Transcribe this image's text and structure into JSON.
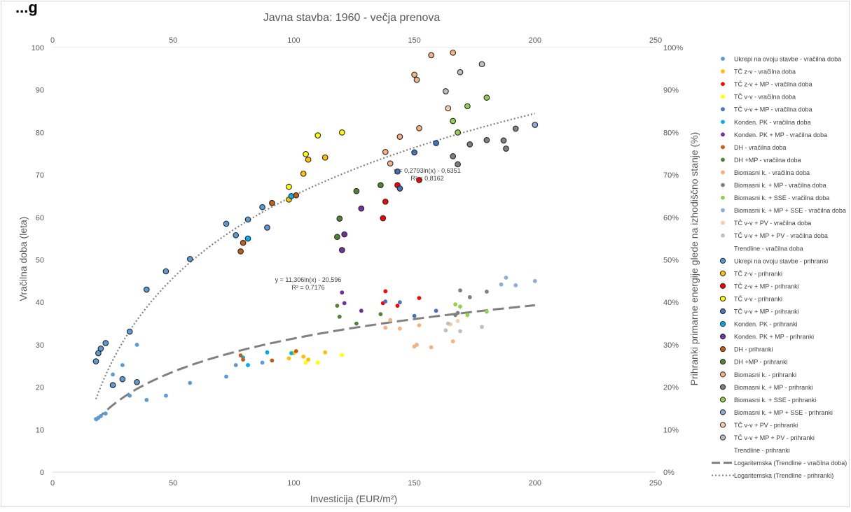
{
  "page": {
    "header_text": "...g"
  },
  "chart_data": {
    "type": "scatter",
    "title": "Javna stavba: 1960 - večja prenova",
    "xlabel": "Investicija (EUR/m²)",
    "ylabel": "Vračilna doba (leta)",
    "ylabel_right": "Prihranki primarne energije glede na izhodiščno stanje (%)",
    "xlim": [
      0,
      250
    ],
    "ylim": [
      0,
      100
    ],
    "ylim_right": [
      0,
      1
    ],
    "x_ticks": [
      "0",
      "50",
      "100",
      "150",
      "200",
      "250"
    ],
    "y_ticks": [
      "0",
      "10",
      "20",
      "30",
      "40",
      "50",
      "60",
      "70",
      "80",
      "90",
      "100"
    ],
    "y_ticks_right": [
      "0%",
      "10%",
      "20%",
      "30%",
      "40%",
      "50%",
      "60%",
      "70%",
      "80%",
      "90%",
      "100%"
    ],
    "grid": false,
    "legend_position": "right",
    "series": [
      {
        "name": "Ukrepi na ovoju stavbe - vračilna doba",
        "color": "#5b9bd5",
        "outlined": false,
        "x": [
          18,
          19,
          20,
          22,
          25,
          29,
          32,
          35,
          39,
          47,
          57,
          72,
          76,
          81,
          87,
          89
        ],
        "y": [
          12.5,
          12.8,
          13.2,
          13.8,
          23,
          25.2,
          18,
          30,
          17,
          18,
          21,
          22.5,
          25.2,
          25.2,
          25.8,
          28.2
        ]
      },
      {
        "name": "TČ z-v - vračilna doba",
        "color": "#ffc000",
        "outlined": false,
        "x": [
          98,
          100,
          104,
          106,
          113
        ],
        "y": [
          26.8,
          28,
          27.2,
          26.5,
          28.2
        ]
      },
      {
        "name": "TČ z-v + MP - vračilna doba",
        "color": "#ff0000",
        "outlined": false,
        "x": [
          137,
          138,
          143,
          152
        ],
        "y": [
          39.8,
          42.6,
          39.2,
          41
        ]
      },
      {
        "name": "TČ v-v - vračilna doba",
        "color": "#ffff00",
        "outlined": false,
        "x": [
          99,
          105,
          110,
          120
        ],
        "y": [
          28.2,
          25.8,
          25.8,
          27.6
        ]
      },
      {
        "name": "TČ v-v + MP - vračilna doba",
        "color": "#4472c4",
        "outlined": false,
        "x": [
          138,
          144,
          150,
          159
        ],
        "y": [
          40.2,
          40,
          36.8,
          38
        ]
      },
      {
        "name": "Konden. PK - vračilna doba",
        "color": "#00b0f0",
        "outlined": false,
        "x": [
          79,
          81,
          89,
          99
        ],
        "y": [
          27,
          25.2,
          28.2,
          28
        ]
      },
      {
        "name": "Konden. PK + MP - vračilna doba",
        "color": "#7030a0",
        "outlined": false,
        "x": [
          120,
          121,
          128
        ],
        "y": [
          42.3,
          39.8,
          38
        ]
      },
      {
        "name": "DH - vračilna doba",
        "color": "#c55a11",
        "outlined": false,
        "x": [
          78,
          79,
          91,
          101
        ],
        "y": [
          27.5,
          26.5,
          26.3,
          28.5
        ]
      },
      {
        "name": "DH +MP - vračilna doba",
        "color": "#548235",
        "outlined": false,
        "x": [
          118,
          119,
          126,
          136
        ],
        "y": [
          39.2,
          36.6,
          35,
          37.2
        ]
      },
      {
        "name": "Biomasni k. - vračilna doba",
        "color": "#f4b183",
        "outlined": false,
        "x": [
          138,
          140,
          144,
          150,
          151,
          152,
          157,
          166
        ],
        "y": [
          34,
          35.8,
          33.8,
          29.6,
          30,
          34.6,
          29.4,
          30.8
        ]
      },
      {
        "name": "Biomasni k. + MP - vračilna doba",
        "color": "#7f7f7f",
        "outlined": false,
        "x": [
          167,
          168,
          169,
          173,
          180
        ],
        "y": [
          37,
          37.5,
          42.8,
          41.2,
          42.5
        ]
      },
      {
        "name": "Biomasni k. + SSE - vračilna doba",
        "color": "#92d050",
        "outlined": false,
        "x": [
          167,
          169,
          172,
          180
        ],
        "y": [
          39.5,
          39,
          37,
          37.8
        ]
      },
      {
        "name": "Biomasni k. + MP + SSE - vračilna doba",
        "color": "#8faadc",
        "outlined": false,
        "x": [
          186,
          188,
          192,
          200
        ],
        "y": [
          44.2,
          45.8,
          44,
          45
        ]
      },
      {
        "name": "TČ v-v + PV - vračilna doba",
        "color": "#f8cbad",
        "outlined": false,
        "x": [
          165,
          168
        ],
        "y": [
          34.8,
          35.6
        ]
      },
      {
        "name": "TČ v-v + MP + PV - vračilna doba",
        "color": "#bfbfbf",
        "outlined": false,
        "x": [
          163,
          164,
          169,
          178
        ],
        "y": [
          33.4,
          35,
          33.2,
          34.2
        ]
      },
      {
        "name": "Ukrepi na ovoju stavbe - prihranki",
        "color": "#5b9bd5",
        "outlined": true,
        "x": [
          18,
          19,
          20,
          22,
          25,
          29,
          32,
          35,
          39,
          47,
          57,
          72,
          76,
          81,
          87,
          89
        ],
        "y": [
          0.261,
          0.28,
          0.291,
          0.304,
          0.205,
          0.219,
          0.331,
          0.212,
          0.43,
          0.473,
          0.502,
          0.585,
          0.558,
          0.595,
          0.624,
          0.576
        ]
      },
      {
        "name": "TČ z-v - prihranki",
        "color": "#ffc000",
        "outlined": true,
        "x": [
          98,
          104,
          106,
          113
        ],
        "y": [
          0.642,
          0.703,
          0.736,
          0.741
        ]
      },
      {
        "name": "TČ z-v + MP - prihranki",
        "color": "#ff0000",
        "outlined": true,
        "x": [
          137,
          138,
          143,
          152
        ],
        "y": [
          0.598,
          0.637,
          0.676,
          0.688
        ]
      },
      {
        "name": "TČ v-v - prihranki",
        "color": "#ffff00",
        "outlined": true,
        "x": [
          98,
          105,
          110,
          120
        ],
        "y": [
          0.672,
          0.749,
          0.793,
          0.8
        ]
      },
      {
        "name": "TČ v-v + MP - prihranki",
        "color": "#4472c4",
        "outlined": true,
        "x": [
          143,
          144,
          150,
          159
        ],
        "y": [
          0.708,
          0.668,
          0.753,
          0.775
        ]
      },
      {
        "name": "Konden. PK - prihranki",
        "color": "#00b0f0",
        "outlined": true,
        "x": [
          81,
          99
        ],
        "y": [
          0.55,
          0.65
        ]
      },
      {
        "name": "Konden. PK + MP - prihranki",
        "color": "#7030a0",
        "outlined": true,
        "x": [
          120,
          121,
          128
        ],
        "y": [
          0.523,
          0.56,
          0.621
        ]
      },
      {
        "name": "DH - prihranki",
        "color": "#c55a11",
        "outlined": true,
        "x": [
          78,
          79,
          91,
          101
        ],
        "y": [
          0.52,
          0.54,
          0.634,
          0.652
        ]
      },
      {
        "name": "DH +MP - prihranki",
        "color": "#548235",
        "outlined": true,
        "x": [
          118,
          119,
          126,
          136
        ],
        "y": [
          0.554,
          0.597,
          0.662,
          0.676
        ]
      },
      {
        "name": "Biomasni k. - prihranki",
        "color": "#f4b183",
        "outlined": true,
        "x": [
          138,
          140,
          144,
          150,
          151,
          152,
          157,
          166
        ],
        "y": [
          0.754,
          0.727,
          0.79,
          0.936,
          0.924,
          0.81,
          0.982,
          0.988
        ]
      },
      {
        "name": "Biomasni k. + MP - prihranki",
        "color": "#7f7f7f",
        "outlined": true,
        "x": [
          166,
          168,
          173,
          180,
          187,
          188,
          192
        ],
        "y": [
          0.744,
          0.725,
          0.772,
          0.782,
          0.781,
          0.762,
          0.809
        ]
      },
      {
        "name": "Biomasni k. + SSE - prihranki",
        "color": "#92d050",
        "outlined": true,
        "x": [
          166,
          168,
          172,
          180
        ],
        "y": [
          0.827,
          0.8,
          0.862,
          0.882
        ]
      },
      {
        "name": "Biomasni k. + MP + SSE - prihranki",
        "color": "#8faadc",
        "outlined": true,
        "x": [
          200
        ],
        "y": [
          0.818
        ]
      },
      {
        "name": "TČ v-v + PV - prihranki",
        "color": "#f8cbad",
        "outlined": true,
        "x": [
          164
        ],
        "y": [
          0.857
        ]
      },
      {
        "name": "TČ v-v + MP + PV - prihranki",
        "color": "#bfbfbf",
        "outlined": true,
        "x": [
          163,
          169,
          178
        ],
        "y": [
          0.897,
          0.942,
          0.961
        ]
      }
    ],
    "legend_items": [
      {
        "label": "Ukrepi na ovoju stavbe - vračilna doba",
        "color": "#5b9bd5",
        "symbol": "dot"
      },
      {
        "label": "TČ z-v - vračilna doba",
        "color": "#ffc000",
        "symbol": "dot"
      },
      {
        "label": "TČ z-v + MP - vračilna doba",
        "color": "#ff0000",
        "symbol": "dot"
      },
      {
        "label": "TČ v-v - vračilna doba",
        "color": "#ffff00",
        "symbol": "dot"
      },
      {
        "label": "TČ v-v + MP - vračilna doba",
        "color": "#4472c4",
        "symbol": "dot"
      },
      {
        "label": "Konden. PK - vračilna doba",
        "color": "#00b0f0",
        "symbol": "dot"
      },
      {
        "label": "Konden. PK + MP - vračilna doba",
        "color": "#7030a0",
        "symbol": "dot"
      },
      {
        "label": "DH - vračilna doba",
        "color": "#c55a11",
        "symbol": "dot"
      },
      {
        "label": "DH +MP - vračilna doba",
        "color": "#548235",
        "symbol": "dot"
      },
      {
        "label": "Biomasni k. - vračilna doba",
        "color": "#f4b183",
        "symbol": "dot"
      },
      {
        "label": "Biomasni k. + MP - vračilna doba",
        "color": "#7f7f7f",
        "symbol": "dot"
      },
      {
        "label": "Biomasni k. + SSE - vračilna doba",
        "color": "#92d050",
        "symbol": "dot"
      },
      {
        "label": "Biomasni k. + MP + SSE - vračilna doba",
        "color": "#8faadc",
        "symbol": "dot"
      },
      {
        "label": "TČ v-v + PV - vračilna doba",
        "color": "#f8cbad",
        "symbol": "dot"
      },
      {
        "label": "TČ v-v + MP + PV - vračilna doba",
        "color": "#bfbfbf",
        "symbol": "dot"
      },
      {
        "label": "Trendline - vračilna doba",
        "color": "#ffffff",
        "symbol": "none"
      },
      {
        "label": "Ukrepi na ovoju stavbe - prihranki",
        "color": "#5b9bd5",
        "symbol": "ring"
      },
      {
        "label": "TČ z-v - prihranki",
        "color": "#ffc000",
        "symbol": "ring"
      },
      {
        "label": "TČ z-v + MP - prihranki",
        "color": "#ff0000",
        "symbol": "ring"
      },
      {
        "label": "TČ v-v - prihranki",
        "color": "#ffff00",
        "symbol": "ring"
      },
      {
        "label": "TČ v-v + MP - prihranki",
        "color": "#4472c4",
        "symbol": "ring"
      },
      {
        "label": "Konden. PK - prihranki",
        "color": "#00b0f0",
        "symbol": "ring"
      },
      {
        "label": "Konden. PK + MP - prihranki",
        "color": "#7030a0",
        "symbol": "ring"
      },
      {
        "label": "DH - prihranki",
        "color": "#c55a11",
        "symbol": "ring"
      },
      {
        "label": "DH +MP - prihranki",
        "color": "#548235",
        "symbol": "ring"
      },
      {
        "label": "Biomasni k. - prihranki",
        "color": "#f4b183",
        "symbol": "ring"
      },
      {
        "label": "Biomasni k. + MP - prihranki",
        "color": "#7f7f7f",
        "symbol": "ring"
      },
      {
        "label": "Biomasni k. + SSE - prihranki",
        "color": "#92d050",
        "symbol": "ring"
      },
      {
        "label": "Biomasni k. + MP + SSE - prihranki",
        "color": "#8faadc",
        "symbol": "ring"
      },
      {
        "label": "TČ v-v + PV - prihranki",
        "color": "#f8cbad",
        "symbol": "ring"
      },
      {
        "label": "TČ v-v + MP + PV - prihranki",
        "color": "#bfbfbf",
        "symbol": "ring"
      },
      {
        "label": "Trendline - prihranki",
        "color": "#ffffff",
        "symbol": "none"
      },
      {
        "label": "Logaritemska (Trendline - vračilna doba)",
        "color": "#808080",
        "symbol": "dash"
      },
      {
        "label": "Logaritemska (Trendline - prihranki)",
        "color": "#808080",
        "symbol": "dot-line"
      }
    ],
    "trendlines": [
      {
        "name": "Logaritemska (Trendline - vračilna doba)",
        "axis": "left",
        "a": 11.306,
        "b": -20.596,
        "x_range": [
          18,
          200
        ],
        "color": "#808080",
        "style": "dash",
        "equation": "y = 11,306ln(x) - 20,596",
        "r2": "R² = 0,7176"
      },
      {
        "name": "Logaritemska (Trendline - prihranki)",
        "axis": "right",
        "a": 0.2793,
        "b": -0.6351,
        "x_range": [
          18,
          200
        ],
        "color": "#808080",
        "style": "dot-line",
        "equation": "y = 0,2793ln(x) - 0,6351",
        "r2": "R² = 0,8162"
      }
    ]
  }
}
